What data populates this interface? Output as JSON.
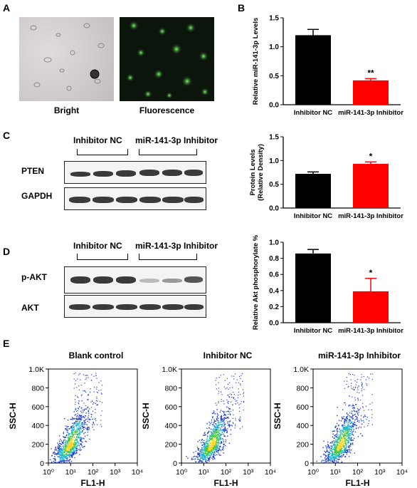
{
  "panels": {
    "A": {
      "letter": "A",
      "images": [
        "Bright",
        "Fluorescence"
      ]
    },
    "B": {
      "letter": "B"
    },
    "C": {
      "letter": "C",
      "groups": [
        "Inhibitor NC",
        "miR-141-3p Inhibitor"
      ],
      "blots": [
        "PTEN",
        "GAPDH"
      ]
    },
    "D": {
      "letter": "D",
      "groups": [
        "Inhibitor NC",
        "miR-141-3p Inhibitor"
      ],
      "blots": [
        "p-AKT",
        "AKT"
      ]
    },
    "E": {
      "letter": "E",
      "plots": [
        "Blank control",
        "Inhibitor NC",
        "miR-141-3p Inhibitor"
      ]
    }
  },
  "chart_data": [
    {
      "type": "bar",
      "id": "B",
      "categories": [
        "Inhibitor NC",
        "miR-141-3p Inhibitor"
      ],
      "values": [
        1.2,
        0.42
      ],
      "errors": [
        0.1,
        0.03
      ],
      "colors": [
        "#000000",
        "#ff0000"
      ],
      "significance": [
        "",
        "**"
      ],
      "ylabel": "Relative miR-141-3p Levels",
      "ylim": [
        0,
        1.5
      ],
      "yticks": [
        "0.0",
        "0.5",
        "1.0",
        "1.5"
      ]
    },
    {
      "type": "bar",
      "id": "C",
      "categories": [
        "Inhibitor NC",
        "miR-141-3p Inhibitor"
      ],
      "values": [
        0.72,
        0.93
      ],
      "errors": [
        0.04,
        0.04
      ],
      "colors": [
        "#000000",
        "#ff0000"
      ],
      "significance": [
        "",
        "*"
      ],
      "ylabel": "Protein Levels (Relative Density)",
      "ylim": [
        0,
        1.5
      ],
      "yticks": [
        "0.0",
        "0.5",
        "1.0",
        "1.5"
      ]
    },
    {
      "type": "bar",
      "id": "D",
      "categories": [
        "Inhibitor NC",
        "miR-141-3p Inhibitor"
      ],
      "values": [
        0.86,
        0.39
      ],
      "errors": [
        0.05,
        0.16
      ],
      "colors": [
        "#000000",
        "#ff0000"
      ],
      "significance": [
        "",
        "*"
      ],
      "ylabel": "Relative Akt phosphorylate %",
      "ylim": [
        0,
        1.0
      ],
      "yticks": [
        "0.0",
        "0.2",
        "0.4",
        "0.6",
        "0.8",
        "1.0"
      ]
    },
    {
      "type": "scatter",
      "id": "E",
      "xlabel": "FL1-H",
      "ylabel": "SSC-H",
      "xticks": [
        "10⁰",
        "10¹",
        "10²",
        "10³",
        "10⁴"
      ],
      "yticks": [
        "0",
        "200",
        "400",
        "600",
        "800",
        "1.0K"
      ],
      "scale": "log-x"
    }
  ]
}
